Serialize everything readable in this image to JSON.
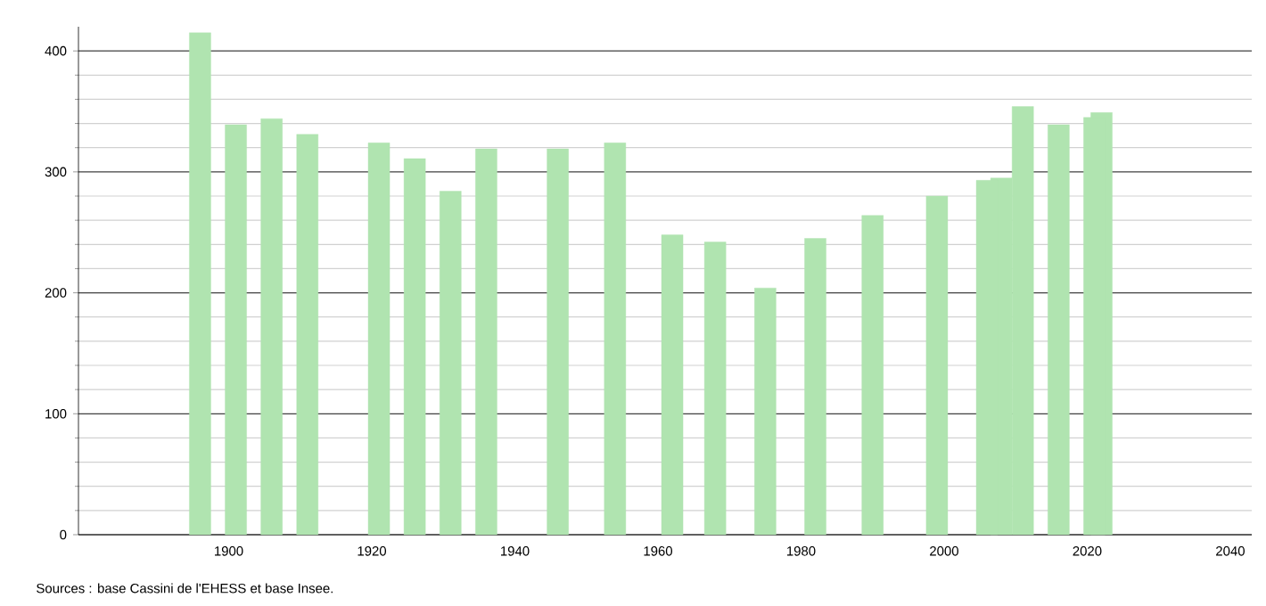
{
  "chart_data": {
    "type": "bar",
    "x": [
      1896,
      1901,
      1906,
      1911,
      1921,
      1926,
      1931,
      1936,
      1946,
      1954,
      1962,
      1968,
      1975,
      1982,
      1990,
      1999,
      2006,
      2008,
      2011,
      2016,
      2021,
      2022
    ],
    "values": [
      415,
      339,
      344,
      331,
      324,
      311,
      284,
      319,
      319,
      324,
      248,
      242,
      204,
      245,
      264,
      280,
      293,
      295,
      354,
      339,
      345,
      349
    ],
    "color": "#b0e4b0",
    "xlim": [
      1879,
      2043
    ],
    "ylim": [
      0,
      420
    ],
    "xticks": [
      1900,
      1920,
      1940,
      1960,
      1980,
      2000,
      2020,
      2040
    ],
    "yticks": [
      0,
      100,
      200,
      300,
      400
    ],
    "grid": "y",
    "annotations": [
      "Sources : base Cassini de l'EHESS et base Insee."
    ]
  }
}
